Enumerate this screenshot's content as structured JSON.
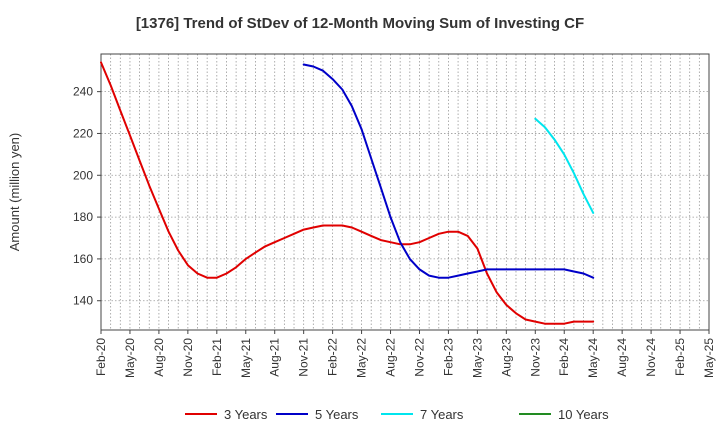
{
  "chart_data": {
    "type": "line",
    "title": "[1376]  Trend of StDev of 12-Month Moving Sum of Investing CF",
    "xlabel": "",
    "ylabel": "Amount (million yen)",
    "x_ticks": [
      "Feb-20",
      "May-20",
      "Aug-20",
      "Nov-20",
      "Feb-21",
      "May-21",
      "Aug-21",
      "Nov-21",
      "Feb-22",
      "May-22",
      "Aug-22",
      "Nov-22",
      "Feb-23",
      "May-23",
      "Aug-23",
      "Nov-23",
      "Feb-24",
      "May-24",
      "Aug-24",
      "Nov-24",
      "Feb-25",
      "May-25"
    ],
    "y_ticks": [
      140,
      160,
      180,
      200,
      220,
      240
    ],
    "ylim": [
      126,
      258
    ],
    "grid": "dotted",
    "legend_position": "bottom",
    "series": [
      {
        "name": "3 Years",
        "color": "#e00000",
        "x": [
          "Feb-20",
          "Mar-20",
          "Apr-20",
          "May-20",
          "Jun-20",
          "Jul-20",
          "Aug-20",
          "Sep-20",
          "Oct-20",
          "Nov-20",
          "Dec-20",
          "Jan-21",
          "Feb-21",
          "Mar-21",
          "Apr-21",
          "May-21",
          "Jun-21",
          "Jul-21",
          "Aug-21",
          "Sep-21",
          "Oct-21",
          "Nov-21",
          "Dec-21",
          "Jan-22",
          "Feb-22",
          "Mar-22",
          "Apr-22",
          "May-22",
          "Jun-22",
          "Jul-22",
          "Aug-22",
          "Sep-22",
          "Oct-22",
          "Nov-22",
          "Dec-22",
          "Jan-23",
          "Feb-23",
          "Mar-23",
          "Apr-23",
          "May-23",
          "Jun-23",
          "Jul-23",
          "Aug-23",
          "Sep-23",
          "Oct-23",
          "Nov-23",
          "Dec-23",
          "Jan-24",
          "Feb-24",
          "Mar-24",
          "Apr-24",
          "May-24"
        ],
        "values": [
          254,
          243,
          231,
          219,
          207,
          195,
          184,
          173,
          164,
          157,
          153,
          151,
          151,
          153,
          156,
          160,
          163,
          166,
          168,
          170,
          172,
          174,
          175,
          176,
          176,
          176,
          175,
          173,
          171,
          169,
          168,
          167,
          167,
          168,
          170,
          172,
          173,
          173,
          171,
          165,
          153,
          144,
          138,
          134,
          131,
          130,
          129,
          129,
          129,
          130,
          130,
          130
        ]
      },
      {
        "name": "5 Years",
        "color": "#0000c8",
        "x": [
          "Nov-21",
          "Dec-21",
          "Jan-22",
          "Feb-22",
          "Mar-22",
          "Apr-22",
          "May-22",
          "Jun-22",
          "Jul-22",
          "Aug-22",
          "Sep-22",
          "Oct-22",
          "Nov-22",
          "Dec-22",
          "Jan-23",
          "Feb-23",
          "Mar-23",
          "Apr-23",
          "May-23",
          "Jun-23",
          "Jul-23",
          "Aug-23",
          "Sep-23",
          "Oct-23",
          "Nov-23",
          "Dec-23",
          "Jan-24",
          "Feb-24",
          "Mar-24",
          "Apr-24",
          "May-24"
        ],
        "values": [
          253,
          252,
          250,
          246,
          241,
          233,
          222,
          208,
          194,
          180,
          168,
          160,
          155,
          152,
          151,
          151,
          152,
          153,
          154,
          155,
          155,
          155,
          155,
          155,
          155,
          155,
          155,
          155,
          154,
          153,
          151
        ]
      },
      {
        "name": "7 Years",
        "color": "#00e5ee",
        "x": [
          "Nov-23",
          "Dec-23",
          "Jan-24",
          "Feb-24",
          "Mar-24",
          "Apr-24",
          "May-24"
        ],
        "values": [
          227,
          223,
          217,
          210,
          201,
          191,
          182
        ]
      },
      {
        "name": "10 Years",
        "color": "#228b22",
        "x": [],
        "values": []
      }
    ]
  }
}
